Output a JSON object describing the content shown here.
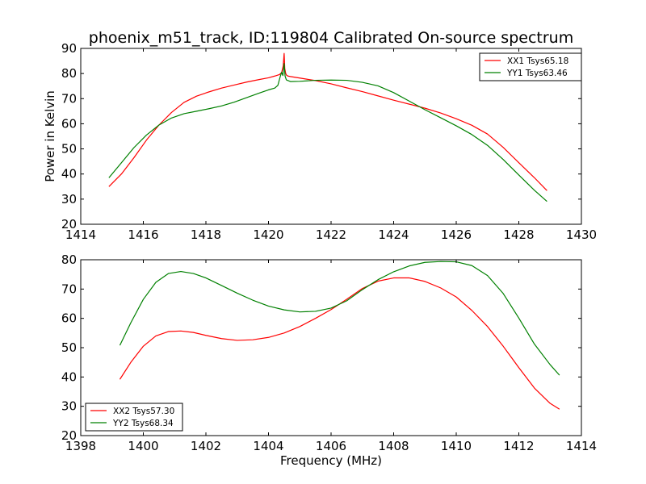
{
  "figure": {
    "title": "phoenix_m51_track, ID:119804 Calibrated On-source spectrum",
    "ylabel": "Power in Kelvin",
    "xlabel": "Frequency (MHz)"
  },
  "colors": {
    "XX": "#ff0000",
    "YY": "#008000"
  },
  "chart_data": [
    {
      "type": "line",
      "xlim": [
        1414,
        1430
      ],
      "ylim": [
        20,
        90
      ],
      "xticks": [
        1414,
        1416,
        1418,
        1420,
        1422,
        1424,
        1426,
        1428,
        1430
      ],
      "yticks": [
        20,
        30,
        40,
        50,
        60,
        70,
        80,
        90
      ],
      "legend_position": "top-right",
      "grid": false,
      "series": [
        {
          "name": "XX1 Tsys65.18",
          "color": "#ff0000",
          "x": [
            1414.9,
            1415.3,
            1415.7,
            1416.1,
            1416.5,
            1416.9,
            1417.3,
            1417.7,
            1418.1,
            1418.5,
            1418.9,
            1419.3,
            1419.7,
            1420.0,
            1420.2,
            1420.35,
            1420.42,
            1420.47,
            1420.5,
            1420.52,
            1420.55,
            1420.58,
            1420.62,
            1420.7,
            1420.8,
            1421.0,
            1421.5,
            1422.0,
            1422.5,
            1423.0,
            1423.5,
            1424.0,
            1424.5,
            1425.0,
            1425.5,
            1426.0,
            1426.5,
            1427.0,
            1427.5,
            1428.0,
            1428.5,
            1428.9
          ],
          "y": [
            35,
            40,
            46.5,
            53.5,
            59.5,
            64.5,
            68.5,
            71,
            72.7,
            74.2,
            75.4,
            76.6,
            77.6,
            78.3,
            79,
            79.6,
            80.4,
            83,
            88,
            82,
            80,
            79.3,
            79,
            78.8,
            78.6,
            78.2,
            77.2,
            75.9,
            74.3,
            72.8,
            71.1,
            69.4,
            67.8,
            66.2,
            64.3,
            62,
            59.4,
            55.9,
            50.6,
            44.5,
            38.5,
            33.4
          ]
        },
        {
          "name": "YY1 Tsys63.46",
          "color": "#008000",
          "x": [
            1414.9,
            1415.3,
            1415.7,
            1416.1,
            1416.5,
            1416.9,
            1417.3,
            1417.7,
            1418.1,
            1418.5,
            1418.9,
            1419.3,
            1419.7,
            1420.0,
            1420.2,
            1420.3,
            1420.38,
            1420.42,
            1420.46,
            1420.5,
            1420.53,
            1420.57,
            1420.62,
            1420.7,
            1421.0,
            1421.5,
            1422.0,
            1422.5,
            1423.0,
            1423.5,
            1424.0,
            1424.5,
            1425.0,
            1425.5,
            1426.0,
            1426.5,
            1427.0,
            1427.5,
            1428.0,
            1428.5,
            1428.9
          ],
          "y": [
            38.5,
            44.5,
            50.5,
            55.5,
            59.5,
            62.3,
            64,
            65,
            66,
            67.1,
            68.6,
            70.4,
            72.2,
            73.5,
            74.2,
            75.3,
            79,
            80.5,
            79.2,
            84,
            79,
            77.5,
            77.2,
            76.8,
            76.9,
            77.3,
            77.4,
            77.3,
            76.5,
            75.1,
            72.4,
            69,
            65.6,
            62.4,
            59.2,
            55.7,
            51.4,
            45.8,
            39.6,
            33.5,
            29.1
          ]
        }
      ]
    },
    {
      "type": "line",
      "xlim": [
        1398,
        1414
      ],
      "ylim": [
        20,
        80
      ],
      "xticks": [
        1398,
        1400,
        1402,
        1404,
        1406,
        1408,
        1410,
        1412,
        1414
      ],
      "yticks": [
        20,
        30,
        40,
        50,
        60,
        70,
        80
      ],
      "legend_position": "bottom-left",
      "grid": false,
      "series": [
        {
          "name": "XX2 Tsys57.30",
          "color": "#ff0000",
          "x": [
            1399.25,
            1399.6,
            1400.0,
            1400.4,
            1400.8,
            1401.2,
            1401.6,
            1402.0,
            1402.5,
            1403.0,
            1403.5,
            1404.0,
            1404.5,
            1405.0,
            1405.5,
            1406.0,
            1406.5,
            1407.0,
            1407.5,
            1408.0,
            1408.5,
            1409.0,
            1409.5,
            1410.0,
            1410.5,
            1411.0,
            1411.5,
            1412.0,
            1412.5,
            1413.0,
            1413.3
          ],
          "y": [
            39.2,
            45,
            50.5,
            54,
            55.5,
            55.7,
            55.2,
            54.2,
            53.1,
            52.5,
            52.7,
            53.5,
            55,
            57.2,
            60,
            63,
            66.5,
            70.2,
            72.7,
            73.8,
            73.8,
            72.6,
            70.4,
            67.3,
            62.7,
            57.2,
            50.5,
            43.2,
            36.2,
            31,
            29
          ]
        },
        {
          "name": "YY2 Tsys68.34",
          "color": "#008000",
          "x": [
            1399.25,
            1399.6,
            1400.0,
            1400.4,
            1400.8,
            1401.2,
            1401.6,
            1402.0,
            1402.5,
            1403.0,
            1403.5,
            1404.0,
            1404.5,
            1405.0,
            1405.5,
            1406.0,
            1406.5,
            1407.0,
            1407.5,
            1408.0,
            1408.5,
            1409.0,
            1409.5,
            1410.0,
            1410.5,
            1411.0,
            1411.5,
            1412.0,
            1412.5,
            1413.0,
            1413.3
          ],
          "y": [
            50.8,
            58.5,
            66.5,
            72.3,
            75.3,
            76,
            75.3,
            73.8,
            71.2,
            68.6,
            66.2,
            64.2,
            62.9,
            62.2,
            62.4,
            63.5,
            66,
            69.8,
            73.2,
            75.9,
            77.9,
            79.1,
            79.4,
            79.3,
            78,
            74.6,
            68.5,
            60.1,
            51.2,
            44.2,
            40.6
          ]
        }
      ]
    }
  ]
}
